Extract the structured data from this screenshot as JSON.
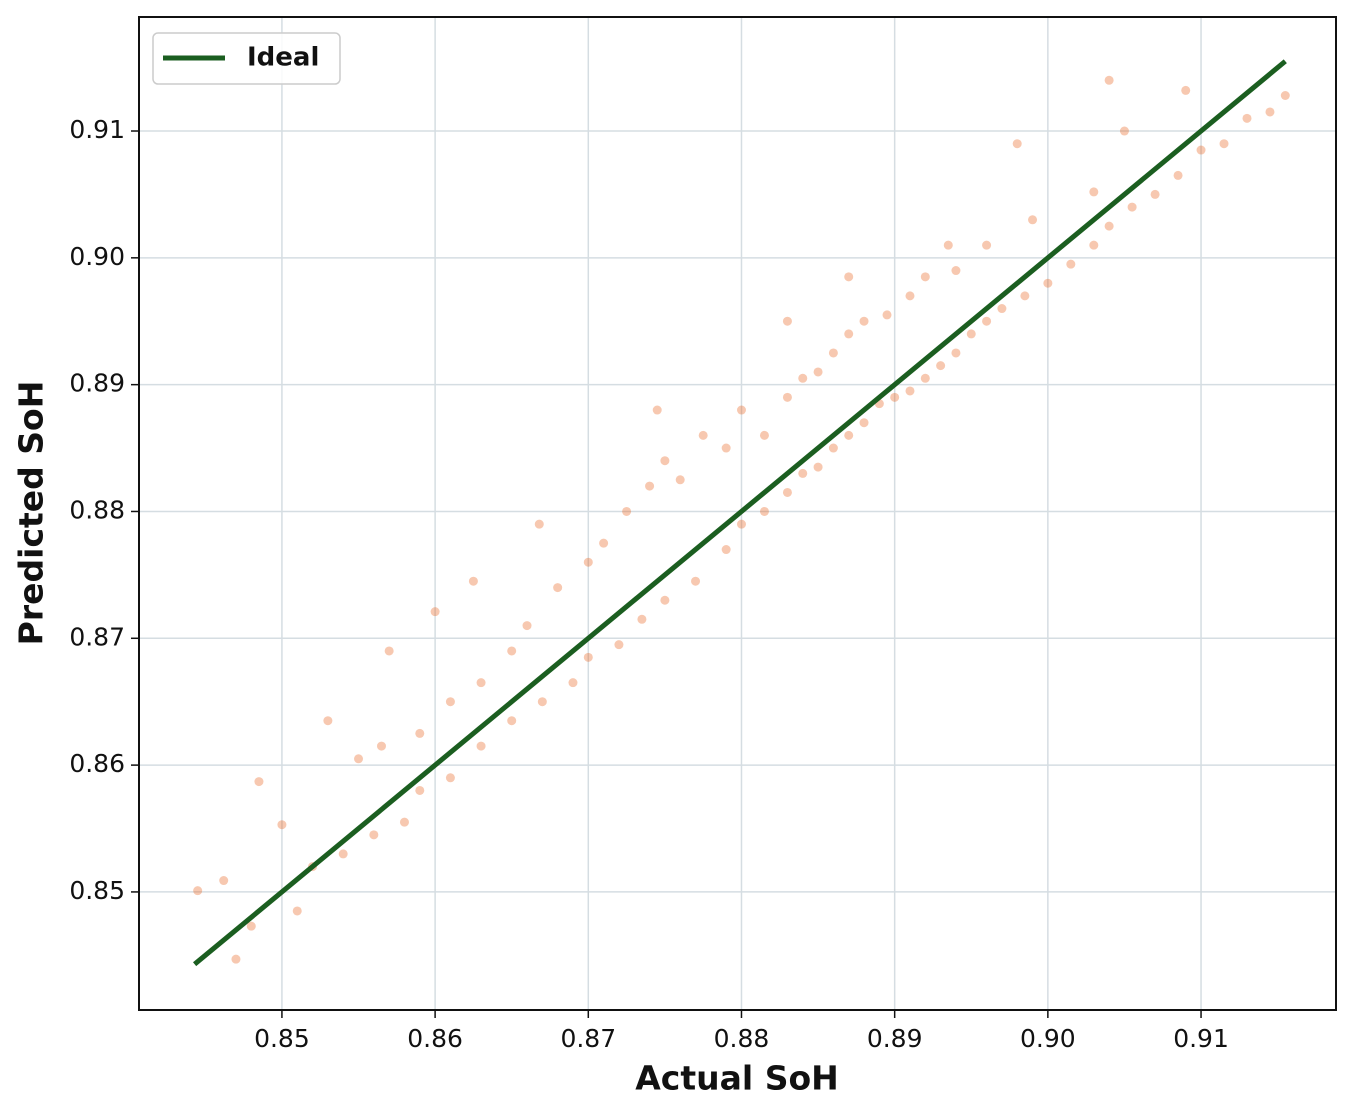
{
  "chart_data": {
    "type": "scatter",
    "xlabel": "Actual SoH",
    "ylabel": "Predicted SoH",
    "xlim": [
      0.84067,
      0.91881
    ],
    "ylim": [
      0.84069,
      0.91899
    ],
    "xticks": [
      0.85,
      0.86,
      0.87,
      0.88,
      0.89,
      {
        "value": 0.9,
        "label": "0.90"
      },
      0.91
    ],
    "yticks": [
      0.85,
      0.86,
      0.87,
      0.88,
      0.89,
      {
        "value": 0.9,
        "label": "0.90"
      },
      0.91
    ],
    "grid": true,
    "legend": "upper left",
    "series": [
      {
        "name": "Ideal",
        "type": "line",
        "color": "#1b5e20",
        "x": [
          0.8443,
          0.9155
        ],
        "values": [
          0.8443,
          0.9155
        ]
      },
      {
        "type": "scatter",
        "color": "#e8601c",
        "x": [
          0.8445,
          0.8462,
          0.8485,
          0.85,
          0.853,
          0.855,
          0.8565,
          0.857,
          0.859,
          0.86,
          0.861,
          0.8625,
          0.863,
          0.865,
          0.866,
          0.8668,
          0.868,
          0.87,
          0.871,
          0.8725,
          0.874,
          0.875,
          0.876,
          0.8775,
          0.879,
          0.88,
          0.8815,
          0.883,
          0.884,
          0.885,
          0.886,
          0.887,
          0.888,
          0.8895,
          0.891,
          0.892,
          0.8935,
          0.894,
          0.896,
          0.898,
          0.899,
          0.8745,
          0.887,
          0.883,
          0.847,
          0.848,
          0.851,
          0.852,
          0.854,
          0.856,
          0.858,
          0.859,
          0.861,
          0.863,
          0.865,
          0.867,
          0.869,
          0.87,
          0.872,
          0.8735,
          0.875,
          0.877,
          0.879,
          0.88,
          0.8815,
          0.883,
          0.884,
          0.885,
          0.886,
          0.887,
          0.888,
          0.889,
          0.89,
          0.891,
          0.892,
          0.893,
          0.894,
          0.895,
          0.896,
          0.897,
          0.8985,
          0.9,
          0.9015,
          0.903,
          0.904,
          0.9055,
          0.907,
          0.9085,
          0.91,
          0.9115,
          0.913,
          0.9145,
          0.9155,
          0.904,
          0.909,
          0.905,
          0.903
        ],
        "values": [
          0.8501,
          0.8509,
          0.8587,
          0.8553,
          0.8635,
          0.8605,
          0.8615,
          0.869,
          0.8625,
          0.8721,
          0.865,
          0.8745,
          0.8665,
          0.869,
          0.871,
          0.879,
          0.874,
          0.876,
          0.8775,
          0.88,
          0.882,
          0.884,
          0.8825,
          0.886,
          0.885,
          0.888,
          0.886,
          0.889,
          0.8905,
          0.891,
          0.8925,
          0.894,
          0.895,
          0.8955,
          0.897,
          0.8985,
          0.901,
          0.899,
          0.901,
          0.909,
          0.903,
          0.888,
          0.8985,
          0.895,
          0.8447,
          0.8473,
          0.8485,
          0.852,
          0.853,
          0.8545,
          0.8555,
          0.858,
          0.859,
          0.8615,
          0.8635,
          0.865,
          0.8665,
          0.8685,
          0.8695,
          0.8715,
          0.873,
          0.8745,
          0.877,
          0.879,
          0.88,
          0.8815,
          0.883,
          0.8835,
          0.885,
          0.886,
          0.887,
          0.8885,
          0.889,
          0.8895,
          0.8905,
          0.8915,
          0.8925,
          0.894,
          0.895,
          0.896,
          0.897,
          0.898,
          0.8995,
          0.901,
          0.9025,
          0.904,
          0.905,
          0.9065,
          0.9085,
          0.909,
          0.911,
          0.9115,
          0.9128,
          0.914,
          0.9132,
          0.91,
          0.9052
        ]
      }
    ]
  }
}
